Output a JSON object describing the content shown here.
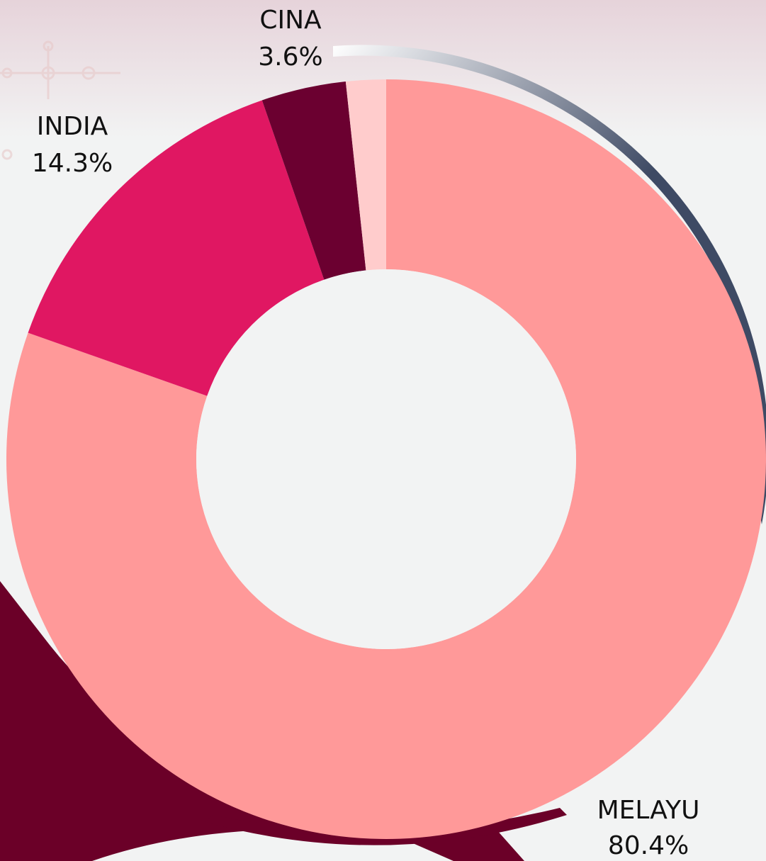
{
  "chart_data": {
    "type": "donut",
    "categories": [
      "MELAYU",
      "INDIA",
      "CINA",
      null
    ],
    "values": [
      80.4,
      14.3,
      3.6,
      1.7
    ],
    "value_labels": [
      "80.4%",
      "14.3%",
      "3.6%",
      null
    ],
    "colors": [
      "#ff9999",
      "#e01762",
      "#6b0030",
      "#ffcccc"
    ]
  }
}
